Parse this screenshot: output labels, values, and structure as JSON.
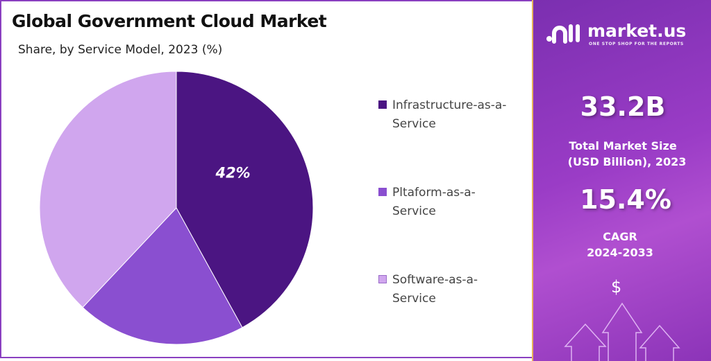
{
  "header": {
    "title": "Global Government Cloud Market",
    "subtitle": "Share, by Service Model, 2023 (%)"
  },
  "chart_data": {
    "type": "pie",
    "title": "Global Government Cloud Market",
    "subtitle": "Share, by Service Model, 2023 (%)",
    "categories": [
      "Infrastructure-as-a-Service",
      "Pltaform-as-a-Service",
      "Software-as-a-Service"
    ],
    "values": [
      42,
      20,
      38
    ],
    "data_labels": [
      "42%",
      "",
      ""
    ],
    "colors": [
      "#4b1582",
      "#8a4fd0",
      "#d0a6ee"
    ],
    "legend_position": "right"
  },
  "sidebar": {
    "brand_name": "market.us",
    "brand_tagline": "ONE STOP SHOP FOR THE REPORTS",
    "market_size": "33.2B",
    "market_size_label_1": "Total Market Size",
    "market_size_label_2": "(USD Billion), 2023",
    "cagr": "15.4%",
    "cagr_label": "CAGR",
    "cagr_period": "2024-2033",
    "dollar_symbol": "$"
  }
}
